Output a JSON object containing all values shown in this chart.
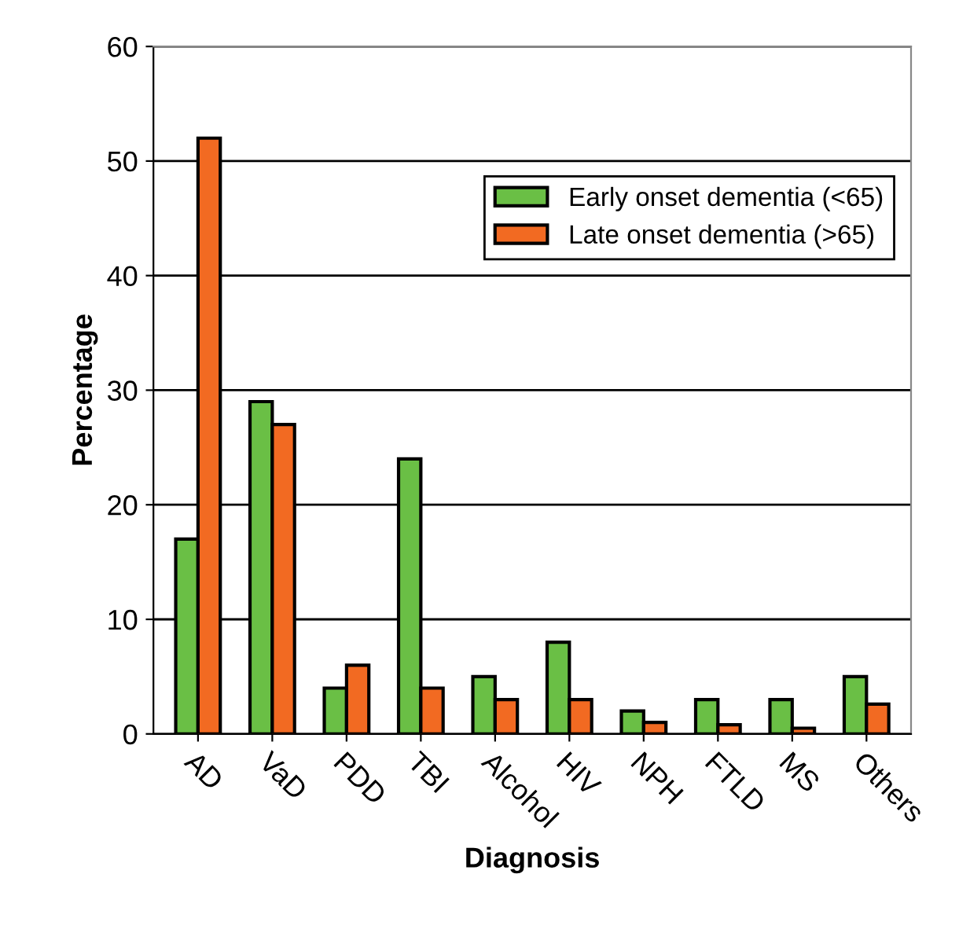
{
  "chart_data": {
    "type": "bar",
    "xlabel": "Diagnosis",
    "ylabel": "Percentage",
    "categories": [
      "AD",
      "VaD",
      "PDD",
      "TBI",
      "Alcohol",
      "HIV",
      "NPH",
      "FTLD",
      "MS",
      "Others"
    ],
    "series": [
      {
        "name": "Early onset dementia (<65)",
        "color": "#6abf45",
        "values": [
          17,
          29,
          4,
          24,
          5,
          8,
          2,
          3,
          3,
          5
        ]
      },
      {
        "name": "Late onset dementia (>65)",
        "color": "#f26a22",
        "values": [
          52,
          27,
          6,
          4,
          3,
          3,
          1,
          0.8,
          0.5,
          2.6
        ]
      }
    ],
    "ylim": [
      0,
      60
    ],
    "yticks": [
      0,
      10,
      20,
      30,
      40,
      50,
      60
    ],
    "grid": "y",
    "legend": "top right"
  }
}
